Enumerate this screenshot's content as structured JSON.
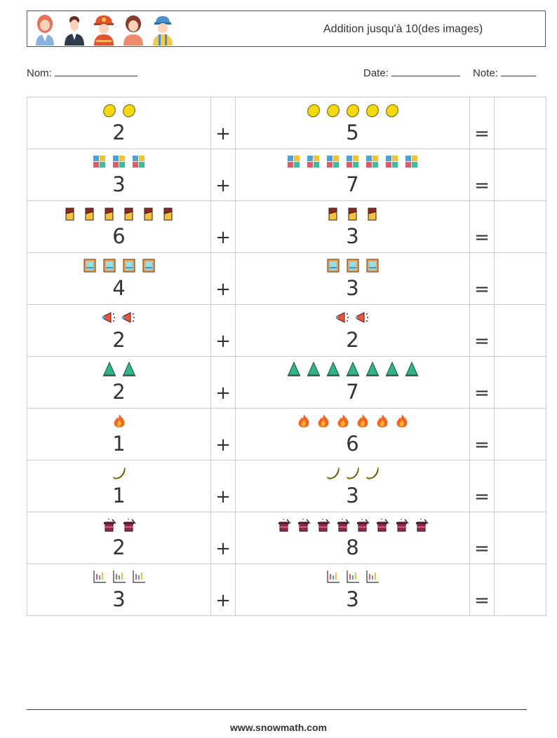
{
  "header": {
    "title": "Addition jusqu'à 10(des images)",
    "avatars": [
      "woman-avatar-icon",
      "man-avatar-icon",
      "firefighter-avatar-icon",
      "girl-avatar-icon",
      "worker-avatar-icon"
    ]
  },
  "fields": {
    "name_label": "Nom:",
    "date_label": "Date:",
    "note_label": "Note:"
  },
  "problems": [
    {
      "left": {
        "icon": "lemon",
        "count": "2"
      },
      "plus": "+",
      "right": {
        "icon": "lemon",
        "count": "5"
      },
      "equals": "="
    },
    {
      "left": {
        "icon": "puzzle",
        "count": "3"
      },
      "plus": "+",
      "right": {
        "icon": "puzzle",
        "count": "7"
      },
      "equals": "="
    },
    {
      "left": {
        "icon": "chocolate",
        "count": "6"
      },
      "plus": "+",
      "right": {
        "icon": "chocolate",
        "count": "3"
      },
      "equals": "="
    },
    {
      "left": {
        "icon": "picture",
        "count": "4"
      },
      "plus": "+",
      "right": {
        "icon": "picture",
        "count": "3"
      },
      "equals": "="
    },
    {
      "left": {
        "icon": "megaphone",
        "count": "2"
      },
      "plus": "+",
      "right": {
        "icon": "megaphone",
        "count": "2"
      },
      "equals": "="
    },
    {
      "left": {
        "icon": "tree",
        "count": "2"
      },
      "plus": "+",
      "right": {
        "icon": "tree",
        "count": "7"
      },
      "equals": "="
    },
    {
      "left": {
        "icon": "fire",
        "count": "1"
      },
      "plus": "+",
      "right": {
        "icon": "fire",
        "count": "6"
      },
      "equals": "="
    },
    {
      "left": {
        "icon": "banana",
        "count": "1"
      },
      "plus": "+",
      "right": {
        "icon": "banana",
        "count": "3"
      },
      "equals": "="
    },
    {
      "left": {
        "icon": "magic-hat",
        "count": "2"
      },
      "plus": "+",
      "right": {
        "icon": "magic-hat",
        "count": "8"
      },
      "equals": "="
    },
    {
      "left": {
        "icon": "chart",
        "count": "3"
      },
      "plus": "+",
      "right": {
        "icon": "chart",
        "count": "3"
      },
      "equals": "="
    }
  ],
  "footer": {
    "website": "www.snowmath.com"
  }
}
